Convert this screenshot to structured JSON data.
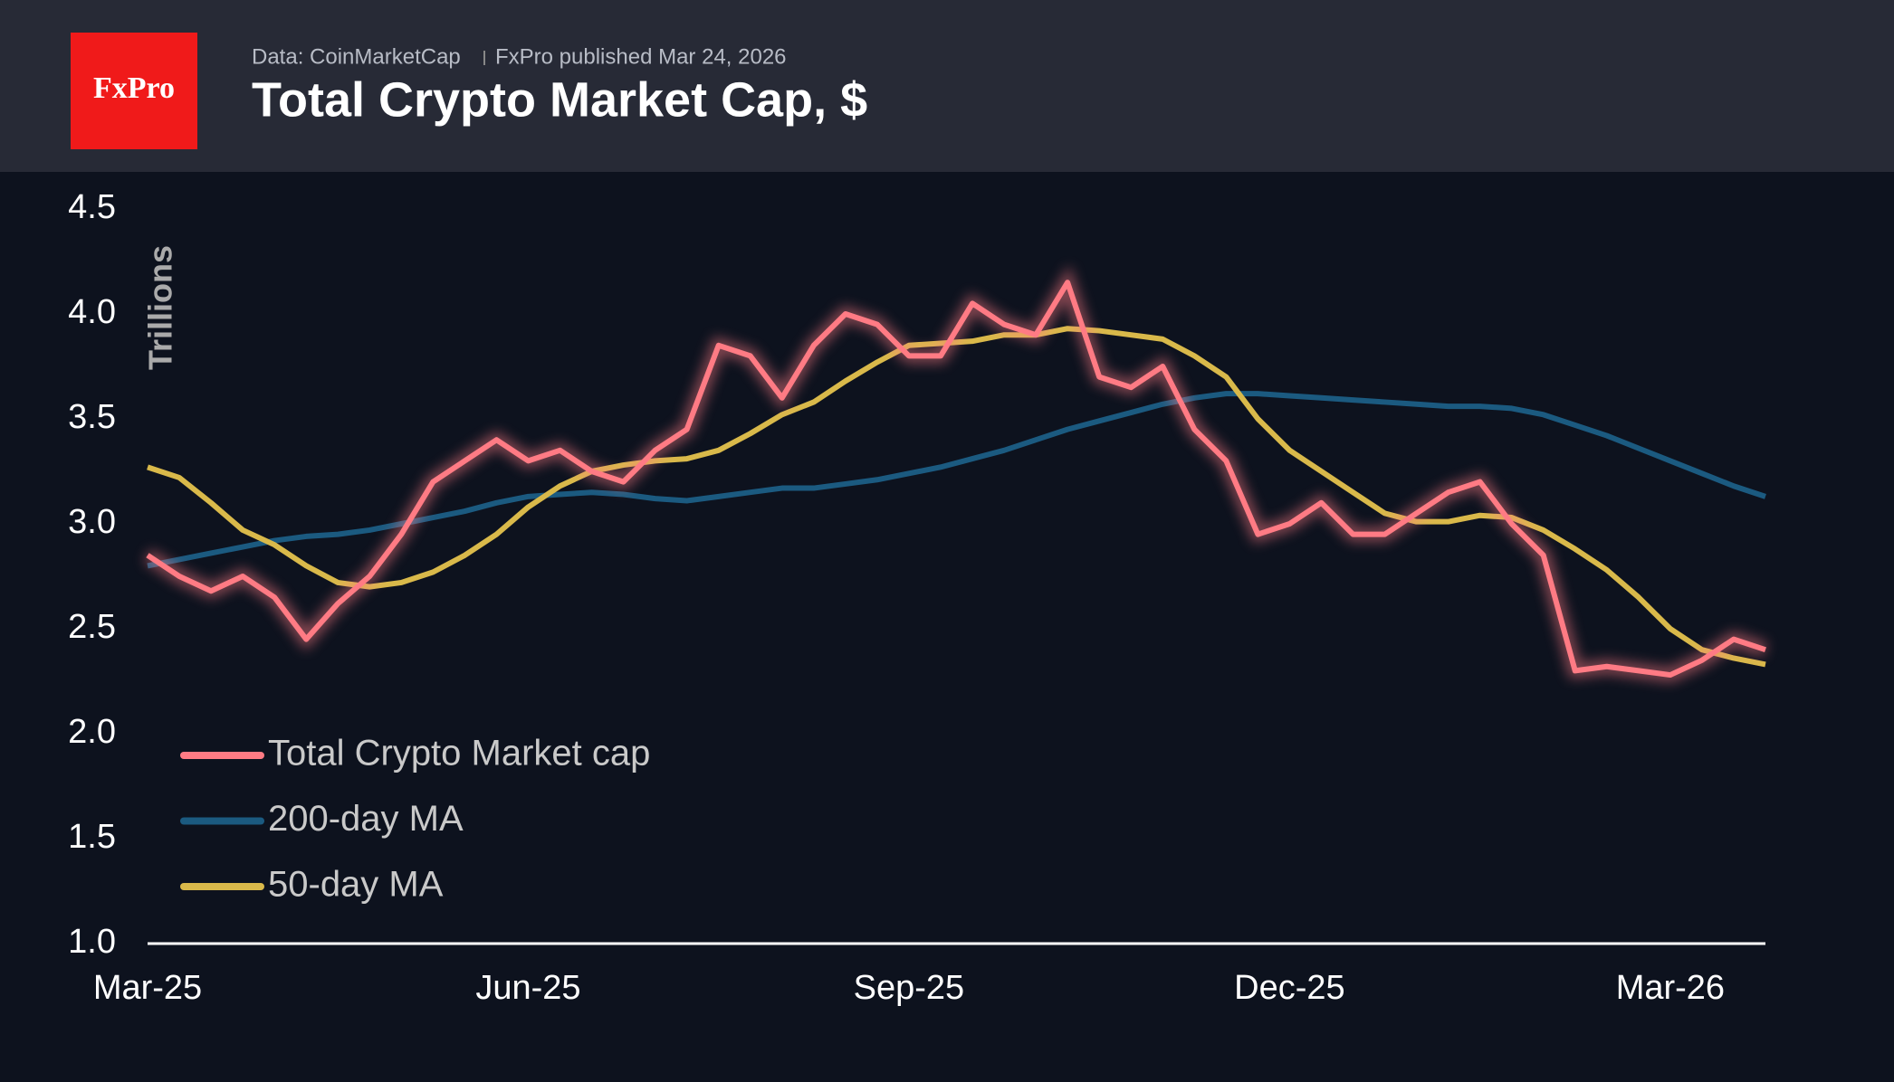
{
  "header": {
    "source": "Data: CoinMarketCap",
    "published": "FxPro published Mar 24, 2026",
    "logo": "FxPro"
  },
  "chart_data": {
    "type": "line",
    "title": "Total Crypto Market Cap, $",
    "y_label": "Trillions",
    "categories": [
      "Mar-25",
      null,
      null,
      null,
      null,
      null,
      null,
      null,
      null,
      null,
      null,
      null,
      "Jun-25",
      null,
      null,
      null,
      null,
      null,
      null,
      null,
      null,
      null,
      null,
      null,
      "Sep-25",
      null,
      null,
      null,
      null,
      null,
      null,
      null,
      null,
      null,
      null,
      null,
      "Dec-25",
      null,
      null,
      null,
      null,
      null,
      null,
      null,
      null,
      null,
      null,
      null,
      "Mar-26",
      null,
      null,
      null
    ],
    "series": [
      {
        "name": "Total Crypto Market cap",
        "color": "#ff7b84",
        "glow": true,
        "values": [
          2.85,
          2.75,
          2.68,
          2.75,
          2.65,
          2.45,
          2.62,
          2.75,
          2.95,
          3.2,
          3.3,
          3.4,
          3.3,
          3.35,
          3.25,
          3.2,
          3.35,
          3.45,
          3.85,
          3.8,
          3.6,
          3.85,
          4.0,
          3.95,
          3.8,
          3.8,
          4.05,
          3.95,
          3.9,
          4.15,
          3.7,
          3.65,
          3.75,
          3.45,
          3.3,
          2.95,
          3.0,
          3.1,
          2.95,
          2.95,
          3.05,
          3.15,
          3.2,
          3.0,
          2.85,
          2.3,
          2.32,
          2.3,
          2.28,
          2.35,
          2.45,
          2.4
        ]
      },
      {
        "name": "200-day MA",
        "color": "#1b5a80",
        "values": [
          2.8,
          2.83,
          2.86,
          2.89,
          2.92,
          2.94,
          2.95,
          2.97,
          3.0,
          3.03,
          3.06,
          3.1,
          3.13,
          3.14,
          3.15,
          3.14,
          3.12,
          3.11,
          3.13,
          3.15,
          3.17,
          3.17,
          3.19,
          3.21,
          3.24,
          3.27,
          3.31,
          3.35,
          3.4,
          3.45,
          3.49,
          3.53,
          3.57,
          3.6,
          3.62,
          3.62,
          3.61,
          3.6,
          3.59,
          3.58,
          3.57,
          3.56,
          3.56,
          3.55,
          3.52,
          3.47,
          3.42,
          3.36,
          3.3,
          3.24,
          3.18,
          3.13
        ]
      },
      {
        "name": "50-day MA",
        "color": "#d9b94a",
        "values": [
          3.27,
          3.22,
          3.1,
          2.97,
          2.9,
          2.8,
          2.72,
          2.7,
          2.72,
          2.77,
          2.85,
          2.95,
          3.08,
          3.18,
          3.25,
          3.28,
          3.3,
          3.31,
          3.35,
          3.43,
          3.52,
          3.58,
          3.68,
          3.77,
          3.85,
          3.86,
          3.87,
          3.9,
          3.9,
          3.93,
          3.92,
          3.9,
          3.88,
          3.8,
          3.7,
          3.5,
          3.35,
          3.25,
          3.15,
          3.05,
          3.01,
          3.01,
          3.04,
          3.03,
          2.97,
          2.88,
          2.78,
          2.65,
          2.5,
          2.4,
          2.36,
          2.33
        ]
      }
    ],
    "ylim": [
      1.0,
      4.5
    ],
    "yticks": [
      {
        "value": 1.0,
        "label": "1.0"
      },
      1.5,
      {
        "value": 2.0,
        "label": "2.0"
      },
      2.5,
      {
        "value": 3.0,
        "label": "3.0"
      },
      3.5,
      {
        "value": 4.0,
        "label": "4.0"
      },
      4.5
    ],
    "grid": false,
    "legend": "lower left"
  }
}
